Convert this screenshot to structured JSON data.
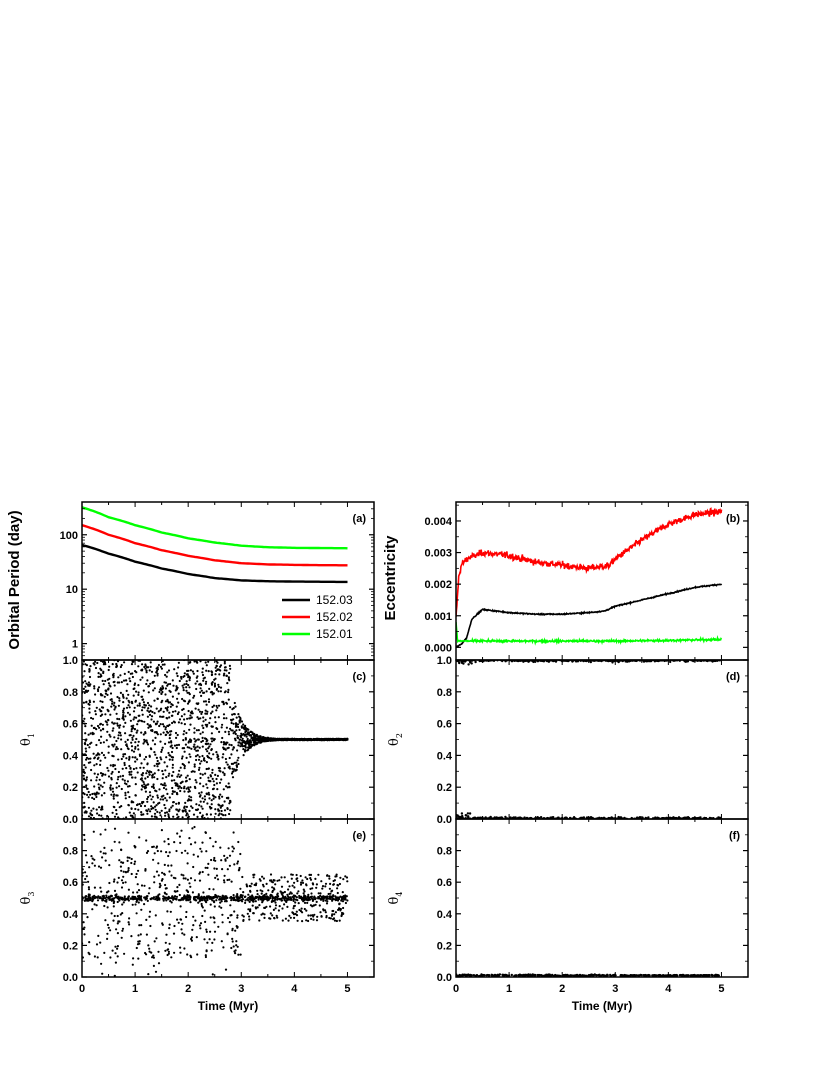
{
  "chart_data": [
    {
      "id": "a",
      "type": "line",
      "panel_label": "(a)",
      "ylabel": "Orbital Period (day)",
      "xlabel": "",
      "yscale": "log",
      "ylim": [
        0.5,
        400
      ],
      "xlim": [
        0,
        5.5
      ],
      "yticks": [
        "1",
        "10",
        "100"
      ],
      "ytick_values": [
        1,
        10,
        100
      ],
      "xticks": [],
      "legend": {
        "placement": "bottom-right"
      },
      "series": [
        {
          "name": "152.03",
          "color": "#000000",
          "x": [
            0,
            0.5,
            1,
            1.5,
            2,
            2.5,
            3,
            3.5,
            4,
            4.5,
            5
          ],
          "y": [
            65,
            45,
            32,
            24,
            19,
            16,
            14.5,
            14,
            13.8,
            13.7,
            13.6
          ]
        },
        {
          "name": "152.02",
          "color": "#ff0000",
          "x": [
            0,
            0.5,
            1,
            1.5,
            2,
            2.5,
            3,
            3.5,
            4,
            4.5,
            5
          ],
          "y": [
            150,
            100,
            70,
            52,
            41,
            34,
            30,
            28.5,
            28,
            27.6,
            27.5
          ]
        },
        {
          "name": "152.01",
          "color": "#00ff00",
          "x": [
            0,
            0.5,
            1,
            1.5,
            2,
            2.5,
            3,
            3.5,
            4,
            4.5,
            5
          ],
          "y": [
            320,
            210,
            150,
            110,
            86,
            72,
            63,
            59,
            57.5,
            57,
            56.5
          ]
        }
      ]
    },
    {
      "id": "b",
      "type": "line",
      "panel_label": "(b)",
      "ylabel": "Eccentricity",
      "xlabel": "",
      "ylim": [
        -0.0004,
        0.0046
      ],
      "xlim": [
        0,
        5.5
      ],
      "yticks": [
        "0.000",
        "0.001",
        "0.002",
        "0.003",
        "0.004"
      ],
      "ytick_values": [
        0,
        0.001,
        0.002,
        0.003,
        0.004
      ],
      "xticks": [],
      "series": [
        {
          "name": "",
          "color": "#ff0000",
          "noise": 0.00018,
          "x": [
            0,
            0.05,
            0.1,
            0.2,
            0.5,
            1,
            1.5,
            2,
            2.5,
            2.9,
            3,
            3.5,
            4,
            4.5,
            5
          ],
          "y": [
            0.0009,
            0.0022,
            0.0026,
            0.0028,
            0.003,
            0.0029,
            0.0027,
            0.0026,
            0.0025,
            0.0026,
            0.0028,
            0.0034,
            0.0039,
            0.0042,
            0.0043
          ]
        },
        {
          "name": "",
          "color": "#000000",
          "noise": 3e-05,
          "x": [
            0,
            0.1,
            0.2,
            0.3,
            0.5,
            1,
            1.5,
            2,
            2.5,
            2.8,
            3,
            3.5,
            4,
            4.5,
            5
          ],
          "y": [
            0,
            0.0001,
            0.0003,
            0.0009,
            0.0012,
            0.0011,
            0.00105,
            0.00105,
            0.0011,
            0.00115,
            0.0013,
            0.0015,
            0.0017,
            0.0019,
            0.002
          ]
        },
        {
          "name": "",
          "color": "#00ff00",
          "noise": 6e-05,
          "x": [
            0,
            0.03,
            0.1,
            1,
            2,
            3,
            4,
            5
          ],
          "y": [
            0.0008,
            0.0002,
            0.0002,
            0.0002,
            0.0002,
            0.0002,
            0.00022,
            0.00025
          ]
        }
      ]
    },
    {
      "id": "c",
      "type": "scatter",
      "panel_label": "(c)",
      "ylabel": "θ",
      "ylabel_sub": "1",
      "xlabel": "",
      "ylim": [
        0,
        1.0
      ],
      "xlim": [
        0,
        5.5
      ],
      "yticks": [
        "0.0",
        "0.2",
        "0.4",
        "0.6",
        "0.8",
        "1.0"
      ],
      "ytick_values": [
        0,
        0.2,
        0.4,
        0.6,
        0.8,
        1.0
      ],
      "xticks": [],
      "description_points": {
        "random_until": 2.8,
        "converge_by": 3.3,
        "final_value": 0.5,
        "end": 5
      }
    },
    {
      "id": "d",
      "type": "scatter",
      "panel_label": "(d)",
      "ylabel": "θ",
      "ylabel_sub": "2",
      "xlabel": "",
      "ylim": [
        0,
        1.0
      ],
      "xlim": [
        0,
        5.5
      ],
      "yticks": [
        "0.0",
        "0.2",
        "0.4",
        "0.6",
        "0.8",
        "1.0"
      ],
      "ytick_values": [
        0,
        0.2,
        0.4,
        0.6,
        0.8,
        1.0
      ],
      "xticks": [],
      "description_points": {
        "levels": [
          0.0,
          1.0
        ],
        "end": 5
      }
    },
    {
      "id": "e",
      "type": "scatter",
      "panel_label": "(e)",
      "ylabel": "θ",
      "ylabel_sub": "3",
      "xlabel": "Time (Myr)",
      "ylim": [
        0,
        1.0
      ],
      "xlim": [
        0,
        5.5
      ],
      "yticks": [
        "0.0",
        "0.2",
        "0.4",
        "0.6",
        "0.8"
      ],
      "ytick_values": [
        0,
        0.2,
        0.4,
        0.6,
        0.8
      ],
      "xticks": [
        "0",
        "1",
        "2",
        "3",
        "4",
        "5"
      ],
      "xtick_values": [
        0,
        1,
        2,
        3,
        4,
        5
      ],
      "description_points": {
        "center": 0.5,
        "end": 5
      }
    },
    {
      "id": "f",
      "type": "scatter",
      "panel_label": "(f)",
      "ylabel": "θ",
      "ylabel_sub": "4",
      "xlabel": "Time (Myr)",
      "ylim": [
        0,
        1.0
      ],
      "xlim": [
        0,
        5.5
      ],
      "yticks": [
        "0.0",
        "0.2",
        "0.4",
        "0.6",
        "0.8"
      ],
      "ytick_values": [
        0,
        0.2,
        0.4,
        0.6,
        0.8
      ],
      "xticks": [
        "0",
        "1",
        "2",
        "3",
        "4",
        "5"
      ],
      "xtick_values": [
        0,
        1,
        2,
        3,
        4,
        5
      ],
      "description_points": {
        "level": 0.01,
        "end": 5
      }
    }
  ]
}
